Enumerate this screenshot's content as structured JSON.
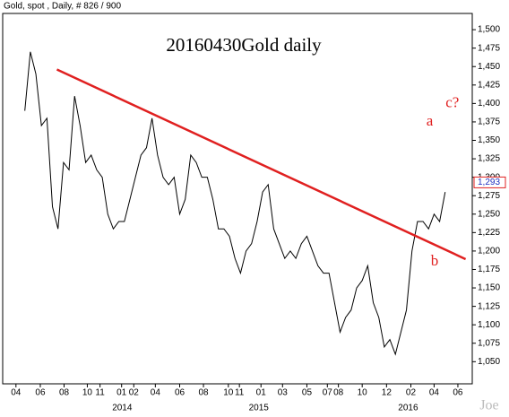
{
  "chart_data": {
    "type": "line",
    "header": "Gold, spot , Daily, # 826 / 900",
    "title": "20160430Gold daily",
    "x": [
      40,
      50,
      60,
      70,
      80,
      90,
      100,
      110,
      120,
      130,
      140,
      150,
      160,
      170,
      180,
      190,
      200,
      210,
      220,
      230,
      240,
      250,
      260,
      270,
      280,
      290,
      300,
      310,
      320,
      330,
      340,
      350,
      360,
      370,
      380,
      390,
      400,
      410,
      420,
      430,
      440,
      450,
      460,
      470,
      480,
      490,
      500,
      510,
      520,
      530,
      540,
      550,
      560,
      570,
      580,
      590,
      600,
      610,
      620,
      630,
      640,
      650,
      660,
      670,
      680,
      690,
      700,
      710,
      720,
      730,
      740,
      750,
      760,
      770,
      780,
      790,
      800
    ],
    "series": [
      {
        "name": "Gold",
        "color": "#000000",
        "values": [
          1390,
          1470,
          1440,
          1370,
          1380,
          1260,
          1230,
          1320,
          1310,
          1410,
          1370,
          1320,
          1330,
          1310,
          1300,
          1250,
          1230,
          1240,
          1240,
          1270,
          1300,
          1330,
          1340,
          1380,
          1330,
          1300,
          1290,
          1300,
          1250,
          1270,
          1330,
          1320,
          1300,
          1300,
          1270,
          1230,
          1230,
          1220,
          1190,
          1170,
          1200,
          1210,
          1240,
          1280,
          1290,
          1230,
          1210,
          1190,
          1200,
          1190,
          1210,
          1220,
          1200,
          1180,
          1170,
          1170,
          1130,
          1090,
          1110,
          1120,
          1150,
          1160,
          1180,
          1130,
          1110,
          1070,
          1080,
          1060,
          1090,
          1120,
          1200,
          1240,
          1240,
          1230,
          1250,
          1240,
          1280
        ]
      }
    ],
    "trend_line": {
      "color": "#e02020",
      "x": [
        98,
        837
      ],
      "values": [
        1446,
        1189
      ]
    },
    "annotations": [
      {
        "text": "a",
        "x": 772,
        "value": 1375
      },
      {
        "text": "b",
        "x": 781,
        "value": 1185
      },
      {
        "text": "c?",
        "x": 813,
        "value": 1400
      }
    ],
    "last_price": {
      "value": 1293,
      "label": "1,293"
    },
    "watermark": "Joe",
    "xlim": [
      0,
      849
    ],
    "ylim": [
      1020,
      1522
    ],
    "xticks": [
      {
        "value": 24,
        "label": "04"
      },
      {
        "value": 68,
        "label": "06"
      },
      {
        "value": 111,
        "label": "08"
      },
      {
        "value": 153,
        "label": "10"
      },
      {
        "value": 176,
        "label": "11"
      },
      {
        "value": 215,
        "label": "01"
      },
      {
        "value": 237,
        "label": "02"
      },
      {
        "value": 276,
        "label": "04"
      },
      {
        "value": 320,
        "label": "06"
      },
      {
        "value": 363,
        "label": "08"
      },
      {
        "value": 408,
        "label": "10"
      },
      {
        "value": 428,
        "label": "11"
      },
      {
        "value": 467,
        "label": "01"
      },
      {
        "value": 506,
        "label": "03"
      },
      {
        "value": 550,
        "label": "05"
      },
      {
        "value": 587,
        "label": "07"
      },
      {
        "value": 607,
        "label": "08"
      },
      {
        "value": 650,
        "label": "10"
      },
      {
        "value": 694,
        "label": "12"
      },
      {
        "value": 738,
        "label": "02"
      },
      {
        "value": 780,
        "label": "04"
      },
      {
        "value": 823,
        "label": "06"
      }
    ],
    "year_ticks": [
      {
        "value": 216,
        "label": "2014"
      },
      {
        "value": 463,
        "label": "2015"
      },
      {
        "value": 733,
        "label": "2016"
      }
    ],
    "yticks": [
      {
        "value": 1050,
        "label": "1,050"
      },
      {
        "value": 1075,
        "label": "1,075"
      },
      {
        "value": 1100,
        "label": "1,100"
      },
      {
        "value": 1125,
        "label": "1,125"
      },
      {
        "value": 1150,
        "label": "1,150"
      },
      {
        "value": 1175,
        "label": "1,175"
      },
      {
        "value": 1200,
        "label": "1,200"
      },
      {
        "value": 1225,
        "label": "1,225"
      },
      {
        "value": 1250,
        "label": "1,250"
      },
      {
        "value": 1275,
        "label": "1,275"
      },
      {
        "value": 1300,
        "label": "1,300"
      },
      {
        "value": 1325,
        "label": "1,325"
      },
      {
        "value": 1350,
        "label": "1,350"
      },
      {
        "value": 1375,
        "label": "1,375"
      },
      {
        "value": 1400,
        "label": "1,400"
      },
      {
        "value": 1425,
        "label": "1,425"
      },
      {
        "value": 1450,
        "label": "1,450"
      },
      {
        "value": 1475,
        "label": "1,475"
      },
      {
        "value": 1500,
        "label": "1,500"
      }
    ]
  }
}
